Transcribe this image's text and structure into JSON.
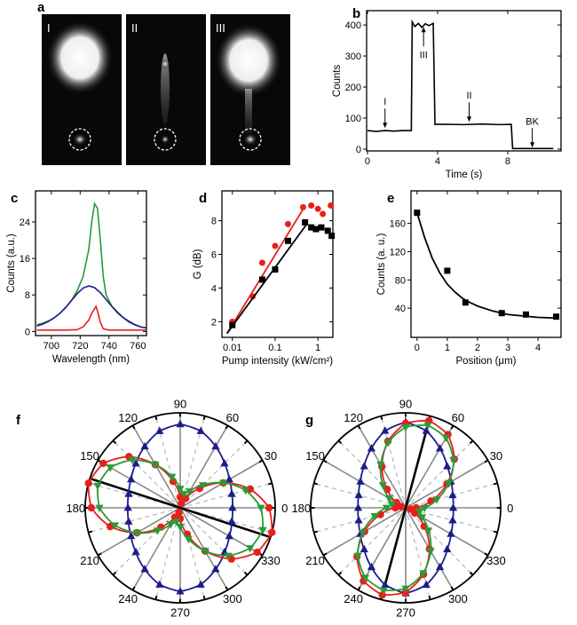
{
  "panel_labels": {
    "a": "a",
    "b": "b",
    "c": "c",
    "d": "d",
    "e": "e",
    "f": "f",
    "g": "g"
  },
  "panel_a": {
    "images": [
      {
        "label": "I"
      },
      {
        "label": "II"
      },
      {
        "label": "III"
      }
    ]
  },
  "chart_data": [
    {
      "panel": "b",
      "type": "line",
      "xlabel": "Time (s)",
      "ylabel": "Counts",
      "xlim": [
        -0.05,
        11.04
      ],
      "ylim": [
        -5.7,
        446
      ],
      "xticks": [
        0,
        4,
        8
      ],
      "yticks": [
        0,
        100,
        200,
        300,
        400
      ],
      "series": [
        {
          "color": "#000000",
          "x": [
            0,
            0.5,
            1,
            1.5,
            2,
            2.5,
            2.55,
            2.7,
            2.9,
            3.1,
            3.3,
            3.5,
            3.75,
            3.85,
            4.5,
            5.5,
            6.5,
            7.5,
            8.2,
            8.28,
            9,
            10,
            10.6
          ],
          "y": [
            60,
            57,
            60,
            58,
            60,
            60,
            410,
            395,
            405,
            392,
            404,
            398,
            405,
            80,
            80,
            79,
            81,
            79,
            80,
            2,
            2,
            2,
            2
          ]
        }
      ],
      "annotations": [
        {
          "text": "I",
          "x": 1,
          "direction": "down"
        },
        {
          "text": "III",
          "x": 3.2,
          "direction": "up"
        },
        {
          "text": "II",
          "x": 5.8,
          "direction": "down"
        },
        {
          "text": "BK",
          "x": 9.4,
          "direction": "down"
        }
      ]
    },
    {
      "panel": "c",
      "type": "line",
      "xlabel": "Wavelength (nm)",
      "ylabel": "Counts (a.u.)",
      "xlim": [
        689,
        766
      ],
      "ylim": [
        -0.9,
        30.8
      ],
      "xticks": [
        700,
        720,
        740,
        760
      ],
      "yticks": [
        0,
        8,
        16,
        24
      ],
      "series": [
        {
          "color": "#2a9a3a",
          "x": [
            690,
            694,
            698,
            702,
            706,
            710,
            714,
            718,
            722,
            726,
            728,
            730,
            732,
            734,
            736,
            738,
            742,
            746,
            750,
            754,
            758,
            762,
            766
          ],
          "y": [
            1.5,
            1.8,
            2.3,
            3,
            4,
            5.2,
            6.8,
            9,
            12,
            18,
            24,
            28,
            27,
            20,
            12,
            8,
            5.5,
            4,
            3,
            2,
            1.4,
            1,
            0.7
          ]
        },
        {
          "color": "#1c1c8c",
          "x": [
            690,
            694,
            698,
            702,
            706,
            710,
            714,
            718,
            722,
            726,
            730,
            734,
            738,
            742,
            746,
            750,
            754,
            758,
            762,
            766
          ],
          "y": [
            1.2,
            1.6,
            2.2,
            3,
            4,
            5.3,
            6.8,
            8.3,
            9.5,
            10,
            9.6,
            8.5,
            7,
            5.5,
            4.2,
            3,
            2.2,
            1.5,
            1,
            0.8
          ]
        },
        {
          "color": "#e8201c",
          "x": [
            690,
            700,
            710,
            718,
            722,
            726,
            728,
            730,
            731,
            732,
            734,
            736,
            740,
            750,
            766
          ],
          "y": [
            0.3,
            0.3,
            0.3,
            0.4,
            1,
            2.5,
            4,
            5,
            5.5,
            4.5,
            2,
            0.6,
            0.3,
            0.3,
            0.3
          ]
        }
      ]
    },
    {
      "panel": "d",
      "type": "scatter",
      "xscale": "log",
      "xlabel": "Pump intensity (kW/cm²)",
      "ylabel": "G (dB)",
      "xlim": [
        0.0057,
        2.24
      ],
      "ylim": [
        1.07,
        9.77
      ],
      "xticks": [
        0.01,
        0.1,
        1
      ],
      "yticks": [
        2,
        4,
        6,
        8
      ],
      "series": [
        {
          "marker": "circle",
          "color": "#e8201c",
          "x": [
            0.01,
            0.03,
            0.05,
            0.1,
            0.2,
            0.45,
            0.7,
            1.0,
            1.3,
            2.0
          ],
          "y": [
            2.0,
            3.5,
            5.5,
            6.5,
            7.8,
            8.8,
            8.9,
            8.7,
            8.4,
            8.9
          ],
          "fit": {
            "x": [
              0.0075,
              0.48
            ],
            "y": [
              1.3,
              8.8
            ]
          }
        },
        {
          "marker": "square",
          "color": "#000000",
          "x": [
            0.01,
            0.05,
            0.1,
            0.2,
            0.5,
            0.7,
            0.9,
            1.2,
            1.7,
            2.1
          ],
          "y": [
            1.8,
            4.5,
            5.1,
            6.8,
            7.9,
            7.6,
            7.5,
            7.6,
            7.4,
            7.1
          ],
          "fit": {
            "x": [
              0.0075,
              0.55
            ],
            "y": [
              1.3,
              7.8
            ]
          }
        }
      ]
    },
    {
      "panel": "e",
      "type": "scatter",
      "xlabel": "Position (μm)",
      "ylabel": "Counts (a. u.)",
      "xlim": [
        -0.2,
        4.76
      ],
      "ylim": [
        -1.3,
        206
      ],
      "xticks": [
        0,
        1,
        2,
        3,
        4
      ],
      "yticks": [
        40,
        80,
        120,
        160
      ],
      "series": [
        {
          "marker": "square",
          "color": "#000000",
          "x": [
            0,
            1,
            1.6,
            2.8,
            3.6,
            4.6
          ],
          "y": [
            175,
            93,
            48,
            33,
            31,
            28
          ],
          "fit": {
            "x": [
              0,
              0.25,
              0.5,
              0.75,
              1,
              1.25,
              1.5,
              1.75,
              2,
              2.5,
              3,
              3.5,
              4,
              4.6
            ],
            "y": [
              175,
              140,
              111,
              90,
              74,
              63,
              54,
              48,
              43,
              36,
              31,
              29,
              27,
              26
            ]
          }
        }
      ]
    },
    {
      "panel": "f",
      "type": "polar",
      "angle_ticks": [
        0,
        30,
        60,
        90,
        120,
        150,
        180,
        210,
        240,
        270,
        300,
        330
      ],
      "axis_line_angle": 162,
      "angles": [
        0,
        15,
        30,
        45,
        60,
        75,
        90,
        105,
        120,
        135,
        150,
        165,
        180,
        195,
        210,
        225,
        240,
        255,
        270,
        285,
        300,
        315,
        330,
        345
      ],
      "series": [
        {
          "marker": "triangle",
          "color": "#1c1c8c",
          "r": [
            0.55,
            0.562,
            0.597,
            0.66,
            0.746,
            0.837,
            0.88,
            0.837,
            0.746,
            0.66,
            0.597,
            0.562,
            0.55,
            0.562,
            0.597,
            0.66,
            0.746,
            0.837,
            0.88,
            0.837,
            0.746,
            0.66,
            0.597,
            0.562
          ]
        },
        {
          "marker": "circle",
          "color": "#e8201c",
          "r": [
            0.936,
            0.763,
            0.525,
            0.288,
            0.114,
            0.05,
            0.114,
            0.288,
            0.525,
            0.763,
            0.936,
            1.0,
            0.936,
            0.763,
            0.525,
            0.288,
            0.114,
            0.05,
            0.114,
            0.288,
            0.525,
            0.763,
            0.936,
            1.0
          ]
        },
        {
          "marker": "triangle-down",
          "color": "#2a9a3a",
          "r": [
            0.85,
            0.713,
            0.525,
            0.338,
            0.2,
            0.15,
            0.2,
            0.338,
            0.525,
            0.713,
            0.85,
            0.9,
            0.85,
            0.713,
            0.525,
            0.338,
            0.2,
            0.15,
            0.2,
            0.338,
            0.525,
            0.713,
            0.85,
            0.9
          ]
        }
      ]
    },
    {
      "panel": "g",
      "type": "polar",
      "angle_ticks": [
        0,
        30,
        60,
        90,
        120,
        150,
        180,
        210,
        240,
        270,
        300,
        330
      ],
      "axis_line_angle": 75,
      "angles": [
        0,
        15,
        30,
        45,
        60,
        75,
        90,
        105,
        120,
        135,
        150,
        165,
        180,
        195,
        210,
        225,
        240,
        255,
        270,
        285,
        300,
        315,
        330,
        345
      ],
      "series": [
        {
          "marker": "triangle",
          "color": "#1c1c8c",
          "r": [
            0.5,
            0.512,
            0.55,
            0.618,
            0.721,
            0.839,
            0.9,
            0.839,
            0.721,
            0.618,
            0.55,
            0.512,
            0.5,
            0.512,
            0.55,
            0.618,
            0.721,
            0.839,
            0.9,
            0.839,
            0.721,
            0.618,
            0.55,
            0.512
          ]
        },
        {
          "marker": "circle",
          "color": "#e8201c",
          "r": [
            0.11,
            0.275,
            0.5,
            0.725,
            0.89,
            0.95,
            0.89,
            0.725,
            0.5,
            0.275,
            0.11,
            0.05,
            0.11,
            0.275,
            0.5,
            0.725,
            0.89,
            0.95,
            0.89,
            0.725,
            0.5,
            0.275,
            0.11,
            0.05
          ]
        },
        {
          "marker": "triangle-down",
          "color": "#2a9a3a",
          "r": [
            0.2,
            0.338,
            0.525,
            0.713,
            0.85,
            0.9,
            0.85,
            0.713,
            0.525,
            0.338,
            0.2,
            0.15,
            0.2,
            0.338,
            0.525,
            0.713,
            0.85,
            0.9,
            0.85,
            0.713,
            0.525,
            0.338,
            0.2,
            0.15
          ]
        }
      ]
    }
  ]
}
